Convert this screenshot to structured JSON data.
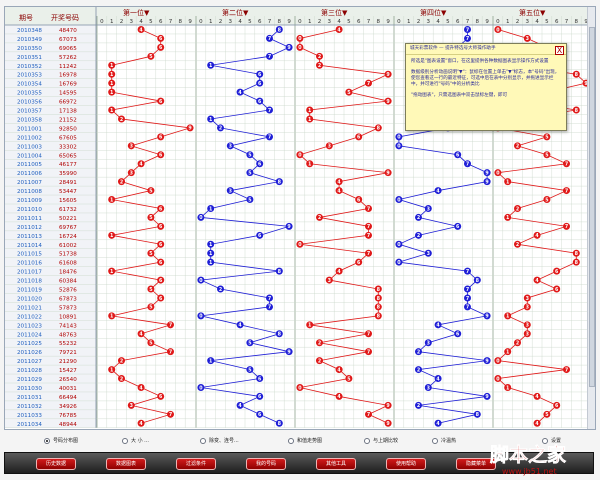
{
  "header": {
    "col_issue": "期号",
    "col_number": "开奖号码",
    "positions": [
      "第一位▼",
      "第二位▼",
      "第三位▼",
      "第四位▼",
      "第五位▼"
    ],
    "digits": [
      "0",
      "1",
      "2",
      "3",
      "4",
      "5",
      "6",
      "7",
      "8",
      "9"
    ]
  },
  "rows": [
    {
      "issue": "2010348",
      "number": "48470"
    },
    {
      "issue": "2010349",
      "number": "67073"
    },
    {
      "issue": "2010350",
      "number": "69065"
    },
    {
      "issue": "2010351",
      "number": "57262"
    },
    {
      "issue": "2010352",
      "number": "11242"
    },
    {
      "issue": "2010353",
      "number": "16978"
    },
    {
      "issue": "2010354",
      "number": "16769"
    },
    {
      "issue": "2010355",
      "number": "14595"
    },
    {
      "issue": "2010356",
      "number": "66972"
    },
    {
      "issue": "2010357",
      "number": "17138"
    },
    {
      "issue": "2010358",
      "number": "21152"
    },
    {
      "issue": "2011001",
      "number": "92850"
    },
    {
      "issue": "2011002",
      "number": "67605"
    },
    {
      "issue": "2011003",
      "number": "33302"
    },
    {
      "issue": "2011004",
      "number": "65065"
    },
    {
      "issue": "2011005",
      "number": "46177"
    },
    {
      "issue": "2011006",
      "number": "35990"
    },
    {
      "issue": "2011007",
      "number": "28491"
    },
    {
      "issue": "2011008",
      "number": "53447"
    },
    {
      "issue": "2011009",
      "number": "15605"
    },
    {
      "issue": "2011010",
      "number": "61732"
    },
    {
      "issue": "2011011",
      "number": "50221"
    },
    {
      "issue": "2011012",
      "number": "69767"
    },
    {
      "issue": "2011013",
      "number": "16724"
    },
    {
      "issue": "2011014",
      "number": "61002"
    },
    {
      "issue": "2011015",
      "number": "51738"
    },
    {
      "issue": "2011016",
      "number": "61608"
    },
    {
      "issue": "2011017",
      "number": "18476"
    },
    {
      "issue": "2011018",
      "number": "60384"
    },
    {
      "issue": "2011019",
      "number": "52876"
    },
    {
      "issue": "2011020",
      "number": "67873"
    },
    {
      "issue": "2011021",
      "number": "57873"
    },
    {
      "issue": "2011022",
      "number": "10891"
    },
    {
      "issue": "2011023",
      "number": "74143"
    },
    {
      "issue": "2011024",
      "number": "48763"
    },
    {
      "issue": "2011025",
      "number": "55232"
    },
    {
      "issue": "2011026",
      "number": "79721"
    },
    {
      "issue": "2011027",
      "number": "21290"
    },
    {
      "issue": "2011028",
      "number": "15427"
    },
    {
      "issue": "2011029",
      "number": "26540"
    },
    {
      "issue": "2011030",
      "number": "40031"
    },
    {
      "issue": "2011031",
      "number": "66494"
    },
    {
      "issue": "2011032",
      "number": "34926"
    },
    {
      "issue": "2011033",
      "number": "76785"
    },
    {
      "issue": "2011034",
      "number": "48944"
    }
  ],
  "colors": {
    "odd_position": "#e01919",
    "even_position": "#1f1fd6",
    "grid": "#c9d7c9",
    "header_text": "#8b0000",
    "issue_text": "#1f5fbf",
    "number_text": "#b00000"
  },
  "popup": {
    "title": "城天彩票软件 — 提升特选号大师操作助手",
    "close": "X",
    "lines": [
      "所选是\"图表设置\"窗口，在这里提供各种数据图表显示操作方式设置",
      "数据级别分析动画说明\"▼\"：鼠标在位置上单击\"▼\"标志，本\"号码\"出现，使您查看这一行的最近特征，可选中后在表中分别显示，并拖进显示栏中，并可进行\"号码\"中的分析类比",
      "\"拖动图表\"，只需选图表中双击鼠标左键，即可"
    ]
  },
  "radios": [
    {
      "label": "号码分布图",
      "selected": true
    },
    {
      "label": "大 小 ...",
      "selected": false
    },
    {
      "label": "除变、连号...",
      "selected": false
    },
    {
      "label": "和值走势图",
      "selected": false
    },
    {
      "label": "与上期比较",
      "selected": false
    },
    {
      "label": "冷温热",
      "selected": false
    },
    {
      "label": "设置",
      "selected": false
    }
  ],
  "buttons": [
    "历史数据",
    "数据图表",
    "过滤条件",
    "我的号码",
    "其他工具",
    "使用帮助",
    "隐藏菜单"
  ],
  "watermark": {
    "text": "脚本之家",
    "url": "www.jb51.net"
  }
}
